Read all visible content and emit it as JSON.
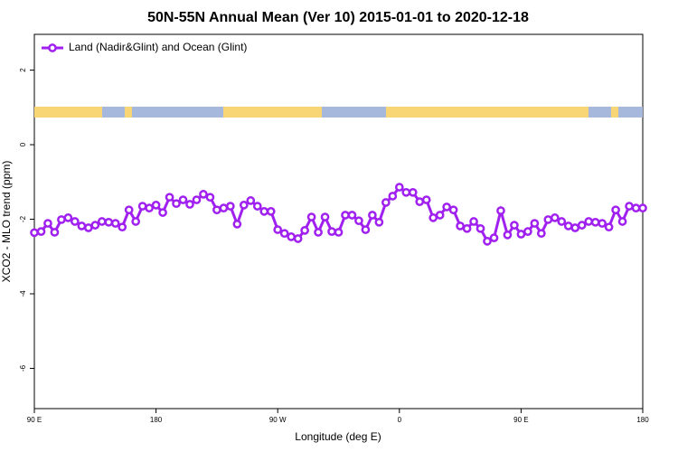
{
  "chart_data": {
    "type": "line",
    "title": "50N-55N Annual Mean (Ver 10)   2015-01-01 to 2020-12-18",
    "x_label": "Longitude (deg E)",
    "y_label": "XCO2 - MLO trend (ppm)",
    "x": [
      90,
      95,
      100,
      105,
      110,
      115,
      120,
      125,
      130,
      135,
      140,
      145,
      150,
      155,
      160,
      165,
      170,
      175,
      180,
      185,
      190,
      195,
      200,
      205,
      210,
      215,
      220,
      225,
      230,
      235,
      240,
      245,
      250,
      255,
      260,
      265,
      270,
      275,
      280,
      285,
      290,
      295,
      300,
      305,
      310,
      315,
      320,
      325,
      330,
      335,
      340,
      345,
      350,
      355,
      360,
      365,
      370,
      375,
      380,
      385,
      390,
      395,
      400,
      405,
      410,
      415,
      420,
      425,
      430,
      435,
      440,
      445,
      450,
      455,
      460,
      465,
      470,
      475,
      480,
      485,
      490,
      495,
      500,
      505,
      510,
      515,
      520,
      525,
      530,
      535,
      540
    ],
    "series": [
      {
        "name": "Land (Nadir&Glint) and Ocean (Glint)",
        "color": "#a020f0",
        "values": [
          -2.36,
          -2.33,
          -2.11,
          -2.35,
          -2.01,
          -1.96,
          -2.06,
          -2.18,
          -2.23,
          -2.16,
          -2.06,
          -2.08,
          -2.11,
          -2.21,
          -1.75,
          -2.06,
          -1.65,
          -1.7,
          -1.62,
          -1.82,
          -1.41,
          -1.58,
          -1.48,
          -1.6,
          -1.48,
          -1.33,
          -1.41,
          -1.75,
          -1.7,
          -1.65,
          -2.13,
          -1.62,
          -1.5,
          -1.65,
          -1.79,
          -1.79,
          -2.28,
          -2.38,
          -2.47,
          -2.52,
          -2.3,
          -1.94,
          -2.35,
          -1.94,
          -2.33,
          -2.35,
          -1.89,
          -1.89,
          -2.04,
          -2.28,
          -1.89,
          -2.08,
          -1.55,
          -1.38,
          -1.14,
          -1.28,
          -1.28,
          -1.53,
          -1.48,
          -1.96,
          -1.89,
          -1.67,
          -1.75,
          -2.18,
          -2.25,
          -2.06,
          -2.25,
          -2.59,
          -2.5,
          -1.77,
          -2.42,
          -2.16,
          -2.4,
          -2.33,
          -2.11,
          -2.38,
          -2.01,
          -1.96,
          -2.06,
          -2.18,
          -2.23,
          -2.16,
          -2.06,
          -2.08,
          -2.11,
          -2.21,
          -1.75,
          -2.06,
          -1.65,
          -1.7,
          -1.7
        ]
      }
    ],
    "xlim": [
      90,
      540
    ],
    "xticks": [
      {
        "value": 90,
        "label": "90 E"
      },
      {
        "value": 180,
        "label": "180"
      },
      {
        "value": 270,
        "label": "90 W"
      },
      {
        "value": 360,
        "label": "0"
      },
      {
        "value": 450,
        "label": "90 E"
      },
      {
        "value": 540,
        "label": "180"
      }
    ],
    "ylim": [
      -7.08,
      2.96
    ],
    "yticks": [
      -6,
      -4,
      -2,
      0,
      2
    ],
    "legend": "top-left"
  }
}
